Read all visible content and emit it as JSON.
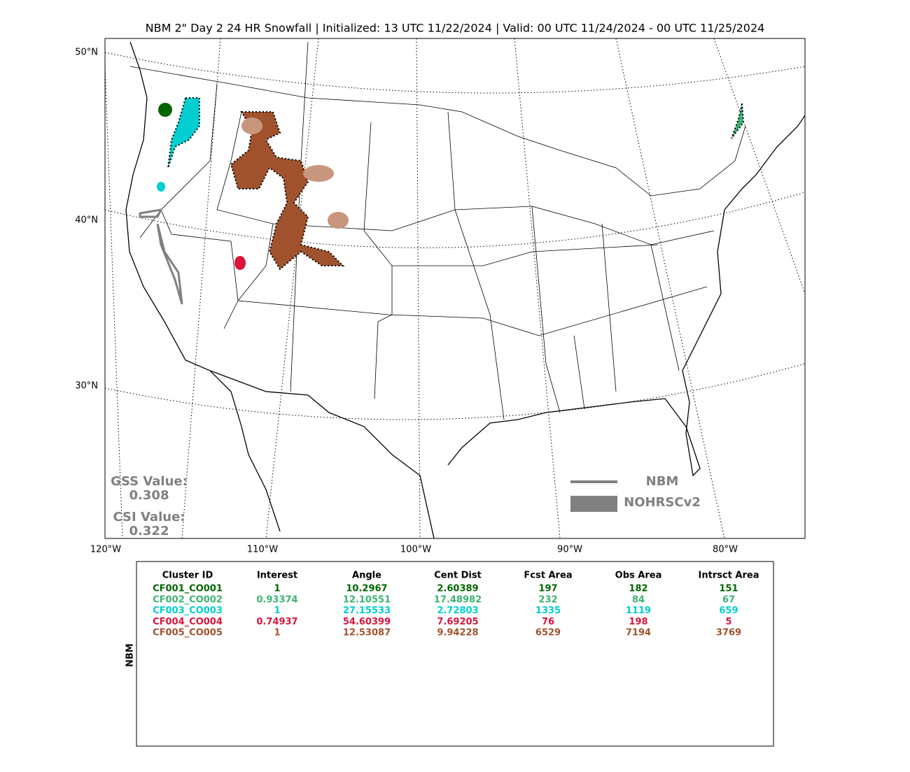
{
  "title": "NBM 2\" Day 2 24 HR Snowfall | Initialized: 13 UTC 11/22/2024 | Valid: 00 UTC 11/24/2024 - 00 UTC 11/25/2024",
  "map": {
    "lat_labels": [
      "50°N",
      "40°N",
      "30°N"
    ],
    "lon_labels": [
      "120°W",
      "110°W",
      "100°W",
      "90°W",
      "80°W"
    ]
  },
  "scores": {
    "gss_label": "GSS Value:",
    "gss_value": 0.308,
    "csi_label": "CSI Value:",
    "csi_value": 0.322
  },
  "legend": {
    "line_label": "NBM",
    "fill_label": "NOHRSCv2"
  },
  "table": {
    "side_label": "NBM",
    "headers": [
      "Cluster ID",
      "Interest",
      "Angle",
      "Cent Dist",
      "Fcst Area",
      "Obs Area",
      "Intrsct Area"
    ],
    "rows": [
      {
        "color": "#006400",
        "cells": [
          "CF001_CO001",
          1,
          10.2967,
          2.60389,
          197,
          182,
          151
        ]
      },
      {
        "color": "#3cb371",
        "cells": [
          "CF002_CO002",
          0.93374,
          12.10551,
          17.48982,
          232,
          84,
          67
        ]
      },
      {
        "color": "#00ced1",
        "cells": [
          "CF003_CO003",
          1,
          27.15533,
          2.72803,
          1335,
          1119,
          659
        ]
      },
      {
        "color": "#dc143c",
        "cells": [
          "CF004_CO004",
          0.74937,
          54.60399,
          7.69205,
          76,
          198,
          5
        ]
      },
      {
        "color": "#a0522d",
        "cells": [
          "CF005_CO005",
          1,
          12.53087,
          9.94228,
          6529,
          7194,
          3769
        ]
      }
    ]
  }
}
